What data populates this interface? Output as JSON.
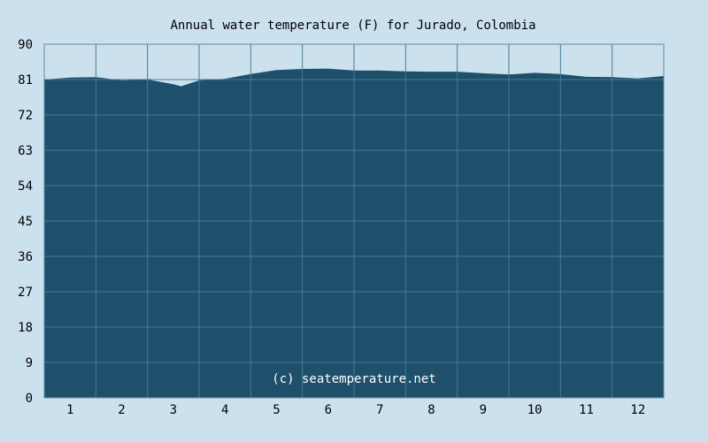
{
  "colors": {
    "background": "#cce1ee",
    "area_fill": "#1e4f6b",
    "grid_line": "#4a7a94",
    "axis": "#5f8aa3",
    "text": "#000000",
    "watermark": "#ffffff"
  },
  "chart_data": {
    "type": "area",
    "title": "Annual water temperature (F) for Jurado, Colombia",
    "xlabel": "",
    "ylabel": "",
    "ylim": [
      0,
      90
    ],
    "yticks": [
      "0",
      "9",
      "18",
      "27",
      "36",
      "45",
      "54",
      "63",
      "72",
      "81",
      "90"
    ],
    "x_ticks": [
      "1",
      "2",
      "3",
      "4",
      "5",
      "6",
      "7",
      "8",
      "9",
      "10",
      "11",
      "12"
    ],
    "grid": true,
    "legend": "none",
    "watermark": "(c) seatemperature.net",
    "series": [
      {
        "x": [
          0.5,
          1.0,
          1.5,
          2.0,
          2.5,
          2.8,
          3.0,
          3.15,
          3.5,
          4.0,
          4.5,
          5.0,
          5.5,
          6.0,
          6.5,
          7.0,
          7.5,
          8.0,
          8.5,
          9.0,
          9.5,
          10.0,
          10.5,
          11.0,
          11.5,
          12.0,
          12.5
        ],
        "values": [
          81.0,
          81.5,
          81.6,
          80.8,
          81.0,
          80.3,
          79.8,
          79.3,
          80.8,
          81.2,
          82.4,
          83.4,
          83.7,
          83.8,
          83.3,
          83.3,
          83.1,
          83.0,
          83.0,
          82.6,
          82.3,
          82.7,
          82.4,
          81.7,
          81.6,
          81.3,
          81.9
        ]
      }
    ]
  }
}
